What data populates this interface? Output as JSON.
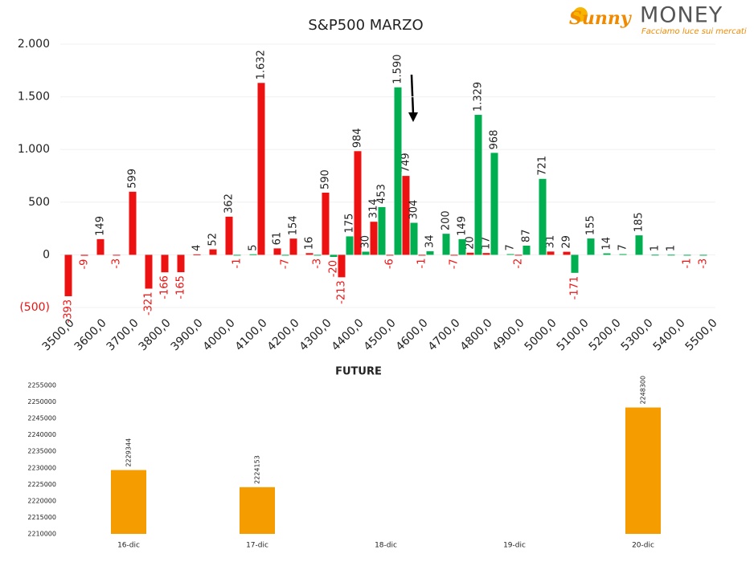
{
  "logo": {
    "brand_a": "Sunny",
    "brand_b": "MONEY",
    "tagline": "Facciamo luce sui mercati"
  },
  "chart_data": [
    {
      "type": "bar",
      "title": "S&P500 MARZO",
      "categories": [
        "3500,0",
        null,
        "3600,0",
        null,
        "3700,0",
        null,
        "3800,0",
        null,
        "3900,0",
        null,
        "4000,0",
        null,
        "4100,0",
        null,
        "4200,0",
        null,
        "4300,0",
        null,
        "4400,0",
        null,
        "4500,0",
        null,
        "4600,0",
        null,
        "4700,0",
        null,
        "4800,0",
        null,
        "4900,0",
        null,
        "5000,0",
        null,
        "5100,0",
        null,
        "5200,0",
        null,
        "5300,0",
        null,
        "5400,0",
        null,
        "5500,0"
      ],
      "series": [
        {
          "color": "#ee1111",
          "values": [
            -393,
            -9,
            149,
            -3,
            599,
            -321,
            -166,
            -165,
            4,
            52,
            362,
            null,
            1632,
            61,
            154,
            16,
            590,
            -213,
            984,
            314,
            -6,
            749,
            -1,
            null,
            -7,
            20,
            17,
            null,
            -2,
            null,
            31,
            29,
            null,
            null,
            null,
            null,
            null,
            null,
            null,
            null,
            null
          ],
          "value_labels": [
            "-393",
            "-9",
            "149",
            "-3",
            "599",
            "-321",
            "-166",
            "-165",
            "4",
            "52",
            "362",
            null,
            "1.632",
            "61",
            "154",
            "16",
            "590",
            "-213",
            "984",
            "314",
            "-6",
            "749",
            "-1",
            null,
            "-7",
            "20",
            "17",
            null,
            "-2",
            null,
            "31",
            "29",
            null,
            null,
            null,
            null,
            null,
            null,
            null,
            null,
            null
          ]
        },
        {
          "color": "#00b050",
          "values": [
            null,
            null,
            null,
            null,
            null,
            null,
            null,
            null,
            null,
            null,
            -1,
            5,
            null,
            -7,
            null,
            -3,
            -20,
            175,
            30,
            453,
            1590,
            304,
            34,
            200,
            149,
            1329,
            968,
            7,
            87,
            721,
            null,
            -171,
            155,
            14,
            7,
            185,
            1,
            1,
            -1,
            -3,
            null
          ],
          "value_labels": [
            null,
            null,
            null,
            null,
            null,
            null,
            null,
            null,
            null,
            null,
            "-1",
            "5",
            null,
            "-7",
            null,
            "-3",
            "-20",
            "175",
            "30",
            "453",
            "1.590",
            "304",
            "34",
            "200",
            "149",
            "1.329",
            "968",
            "7",
            "87",
            "721",
            null,
            "-171",
            "155",
            "14",
            "7",
            "185",
            "1",
            "1",
            "-1",
            "-3",
            null
          ]
        }
      ],
      "ylim": [
        -500,
        2000
      ],
      "yticks": [
        {
          "value": -500,
          "label": "(500)"
        },
        0,
        500,
        {
          "value": 1000,
          "label": "1.000"
        },
        {
          "value": 1500,
          "label": "1.500"
        },
        {
          "value": 2000,
          "label": "2.000"
        }
      ],
      "grid": true
    },
    {
      "type": "bar",
      "title": "FUTURE",
      "categories": [
        "16-dic",
        "17-dic",
        "18-dic",
        "19-dic",
        "20-dic"
      ],
      "values": [
        2229344,
        2224153,
        null,
        null,
        2248300
      ],
      "color": "#f59c00",
      "ylim": [
        2210000,
        2255000
      ],
      "yticks": [
        2210000,
        2215000,
        2220000,
        2225000,
        2230000,
        2235000,
        2240000,
        2245000,
        2250000,
        2255000
      ],
      "grid": false
    }
  ]
}
